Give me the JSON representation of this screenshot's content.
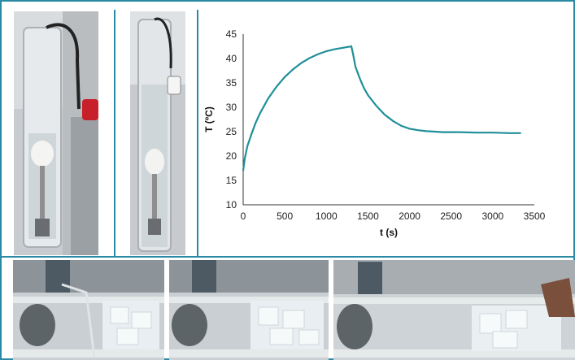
{
  "chart_data": {
    "type": "line",
    "xlabel": "t (s)",
    "ylabel": "T (ºC)",
    "xlim": [
      0,
      3500
    ],
    "ylim": [
      10,
      45
    ],
    "xticks": [
      0,
      500,
      1000,
      1500,
      2000,
      2500,
      3000,
      3500
    ],
    "yticks": [
      10,
      15,
      20,
      25,
      30,
      35,
      40,
      45
    ],
    "grid": false,
    "legend": "none",
    "color": "#1f8f9a",
    "series": [
      {
        "x": [
          0,
          20,
          50,
          100,
          150,
          200,
          300,
          400,
          500,
          600,
          700,
          800,
          900,
          1000,
          1100,
          1200,
          1300,
          1320,
          1350,
          1400,
          1450,
          1500,
          1600,
          1700,
          1800,
          1900,
          2000,
          2100,
          2200,
          2300,
          2400,
          2500,
          2600,
          2800,
          3000,
          3200,
          3340
        ],
        "y": [
          17.0,
          19.5,
          22.0,
          24.5,
          26.8,
          28.7,
          31.8,
          34.2,
          36.2,
          37.8,
          39.1,
          40.1,
          40.9,
          41.5,
          41.9,
          42.2,
          42.5,
          41.0,
          38.3,
          36.0,
          34.0,
          32.5,
          30.3,
          28.5,
          27.2,
          26.2,
          25.6,
          25.3,
          25.1,
          25.0,
          24.9,
          24.9,
          24.9,
          24.8,
          24.8,
          24.7,
          24.7
        ]
      }
    ]
  },
  "photos": {
    "top_left": "heater-cylinder-photo",
    "top_middle": "heater-cylinder-boiling-photo",
    "bottom": [
      "ice-tube-photo-1",
      "ice-tube-photo-2",
      "ice-tube-photo-3"
    ]
  }
}
